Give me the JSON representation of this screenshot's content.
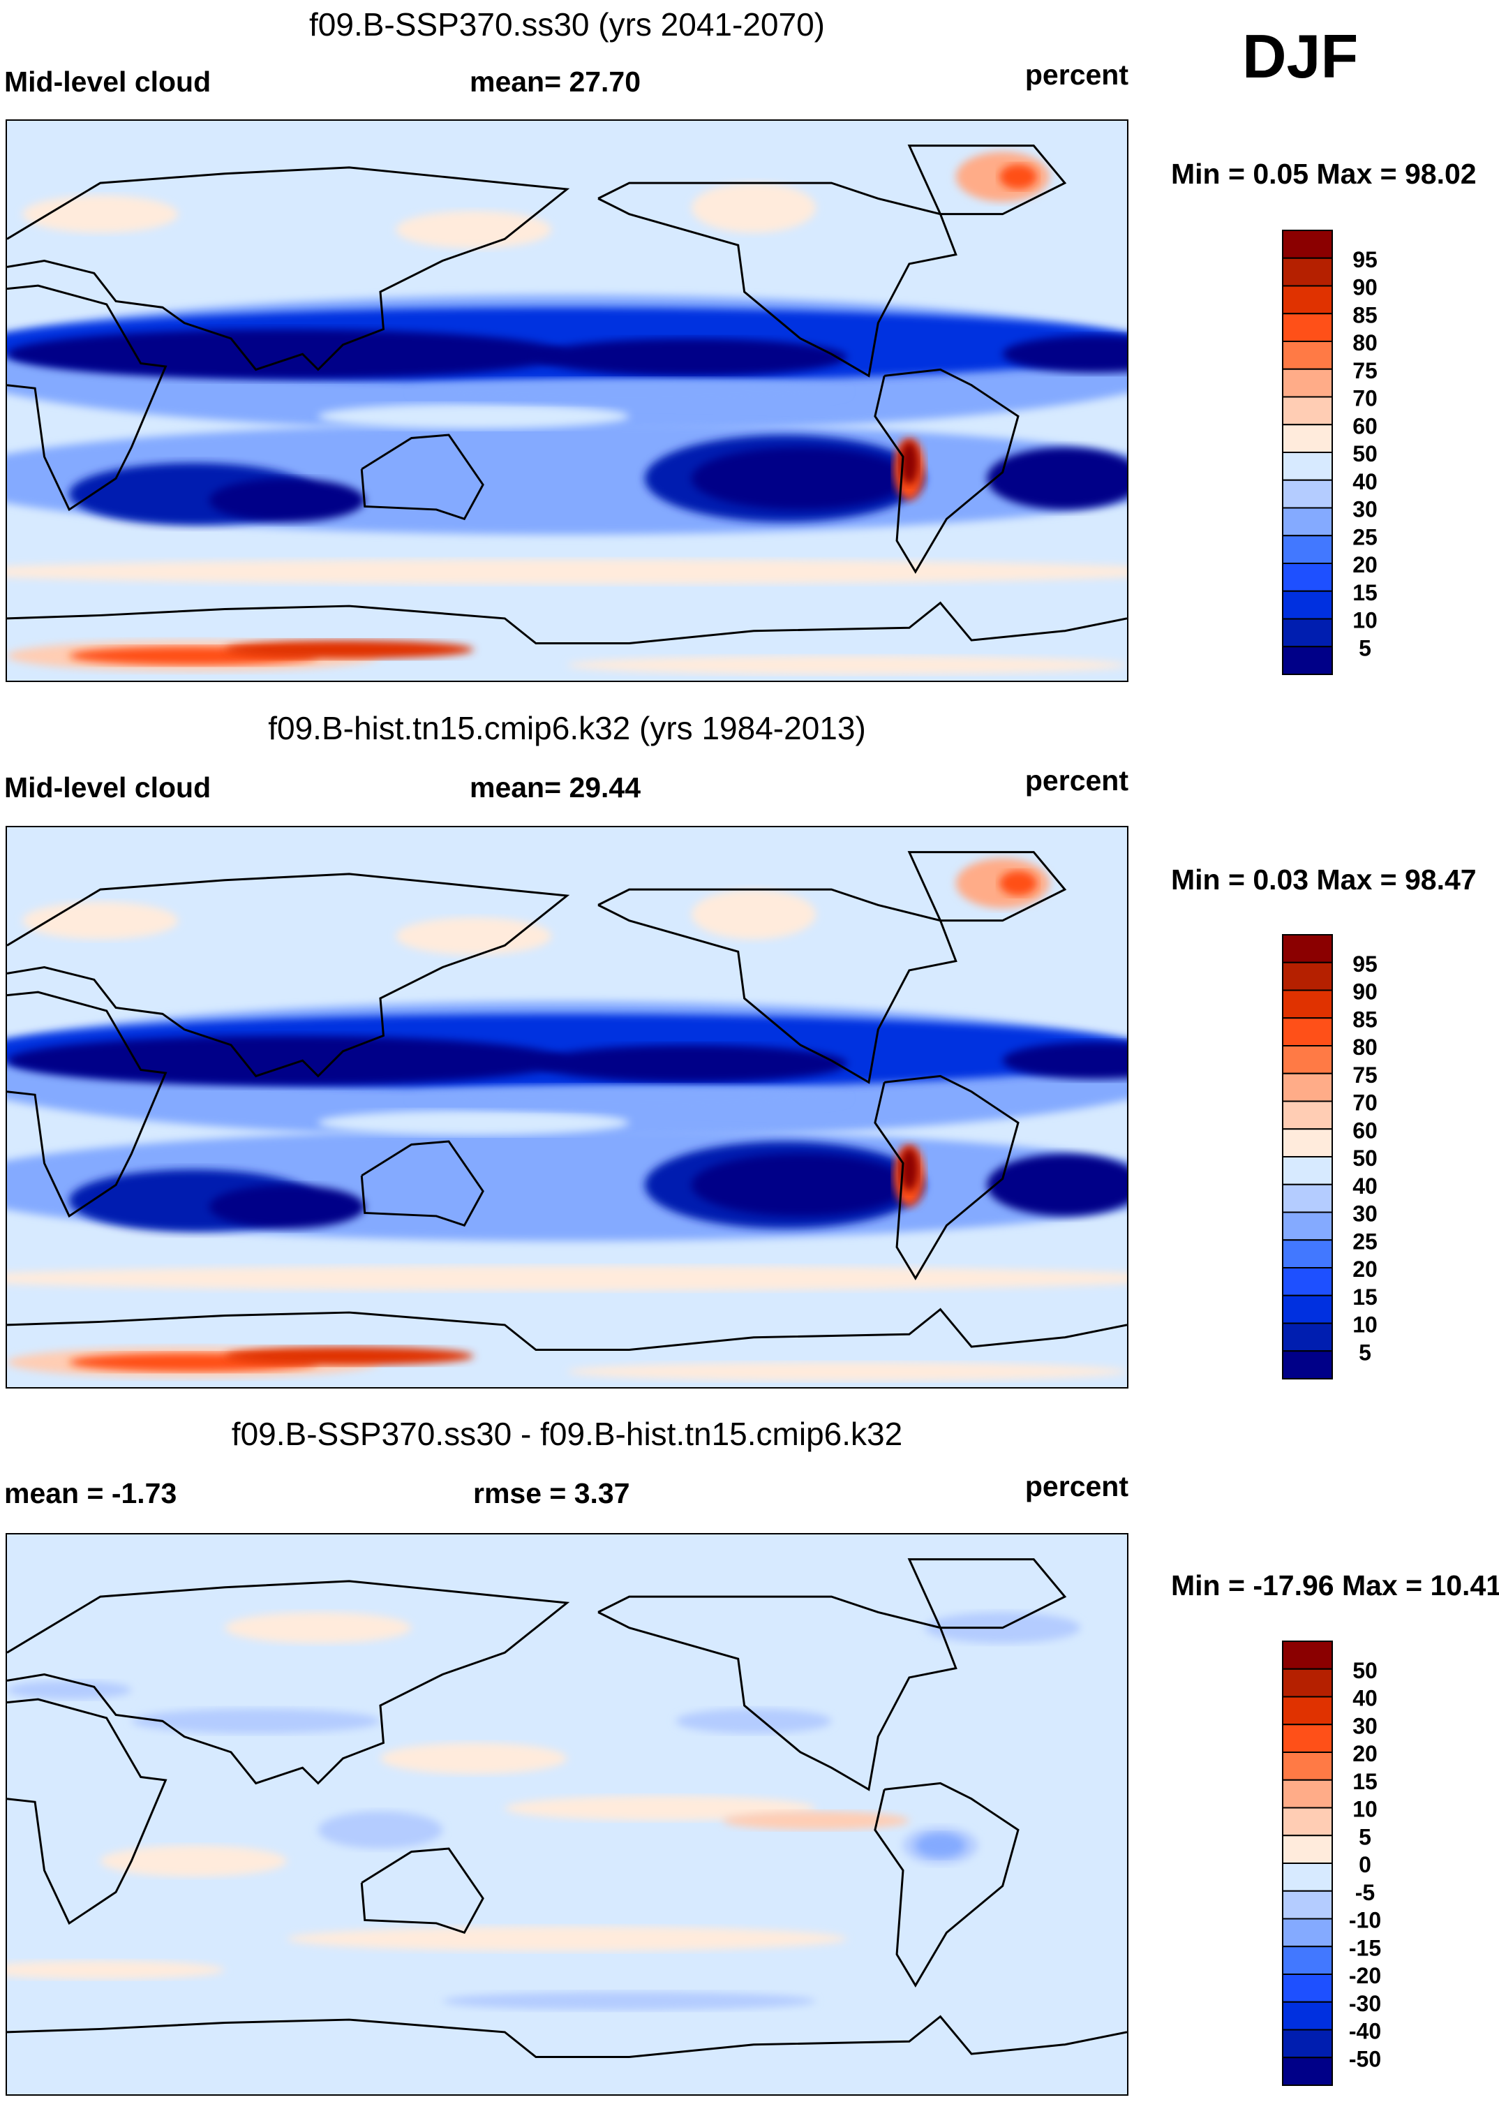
{
  "season": "DJF",
  "colorbar_colors": [
    "#8b0000",
    "#b52000",
    "#e03200",
    "#ff5018",
    "#ff7a45",
    "#ffac88",
    "#ffcdb4",
    "#ffebdc",
    "#d7eaff",
    "#b4ccff",
    "#84aaff",
    "#4278ff",
    "#1e50ff",
    "#0030e0",
    "#001eb0",
    "#000088"
  ],
  "panels": [
    {
      "title": "f09.B-SSP370.ss30 (yrs 2041-2070)",
      "left_label": "Mid-level cloud",
      "center_label": "mean=  27.70",
      "right_label": "percent",
      "minmax": "Min =   0.05 Max =  98.02",
      "colorbar_labels": [
        "95",
        "90",
        "85",
        "80",
        "75",
        "70",
        "60",
        "50",
        "40",
        "30",
        "25",
        "20",
        "15",
        "10",
        "5"
      ]
    },
    {
      "title": "f09.B-hist.tn15.cmip6.k32 (yrs 1984-2013)",
      "left_label": "Mid-level cloud",
      "center_label": "mean=  29.44",
      "right_label": "percent",
      "minmax": "Min =   0.03 Max =  98.47",
      "colorbar_labels": [
        "95",
        "90",
        "85",
        "80",
        "75",
        "70",
        "60",
        "50",
        "40",
        "30",
        "25",
        "20",
        "15",
        "10",
        "5"
      ]
    },
    {
      "title": "f09.B-SSP370.ss30 - f09.B-hist.tn15.cmip6.k32",
      "left_label": "mean =  -1.73",
      "center_label": "rmse =   3.37",
      "right_label": "percent",
      "minmax": "Min = -17.96 Max =  10.41",
      "colorbar_labels": [
        "50",
        "40",
        "30",
        "20",
        "15",
        "10",
        "5",
        "0",
        "-5",
        "-10",
        "-15",
        "-20",
        "-30",
        "-40",
        "-50"
      ]
    }
  ]
}
